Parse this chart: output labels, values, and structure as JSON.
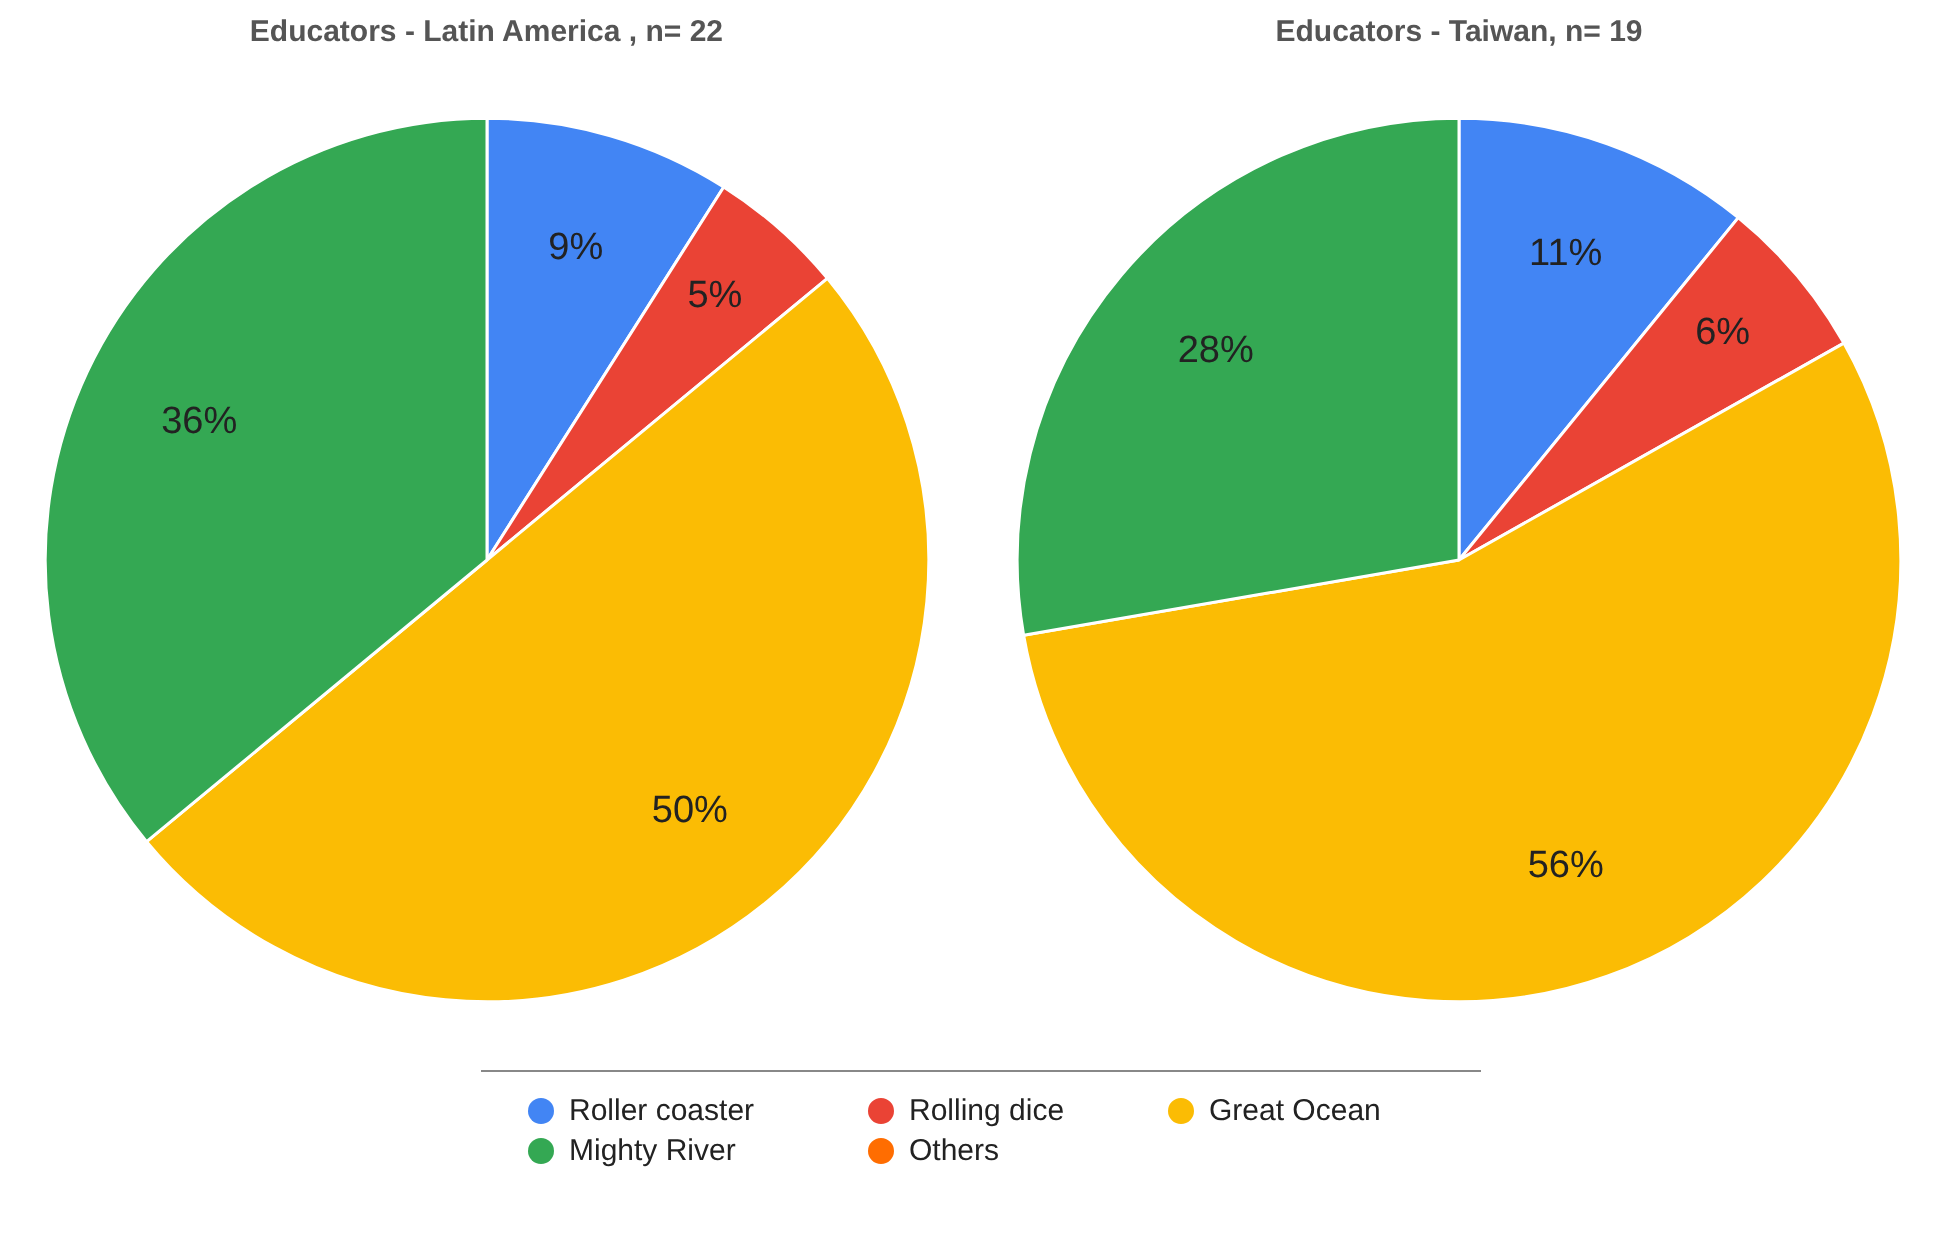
{
  "chart_data": {
    "type": "pie",
    "categories": [
      "Roller coaster",
      "Rolling dice",
      "Great Ocean",
      "Mighty River",
      "Others"
    ],
    "colors": [
      "#4285f4",
      "#ea4335",
      "#fbbc04",
      "#34a853",
      "#ff6d01"
    ],
    "legend": "bottom",
    "series": [
      {
        "name": "Educators - Latin America , n= 22",
        "values": [
          9,
          5,
          50,
          36,
          0
        ],
        "value_labels": [
          "9%",
          "5%",
          "50%",
          "36%",
          null
        ]
      },
      {
        "name": "Educators - Taiwan, n= 19",
        "values": [
          11,
          6,
          56,
          28,
          0
        ],
        "value_labels": [
          "11%",
          "6%",
          "56%",
          "28%",
          null
        ]
      }
    ]
  }
}
